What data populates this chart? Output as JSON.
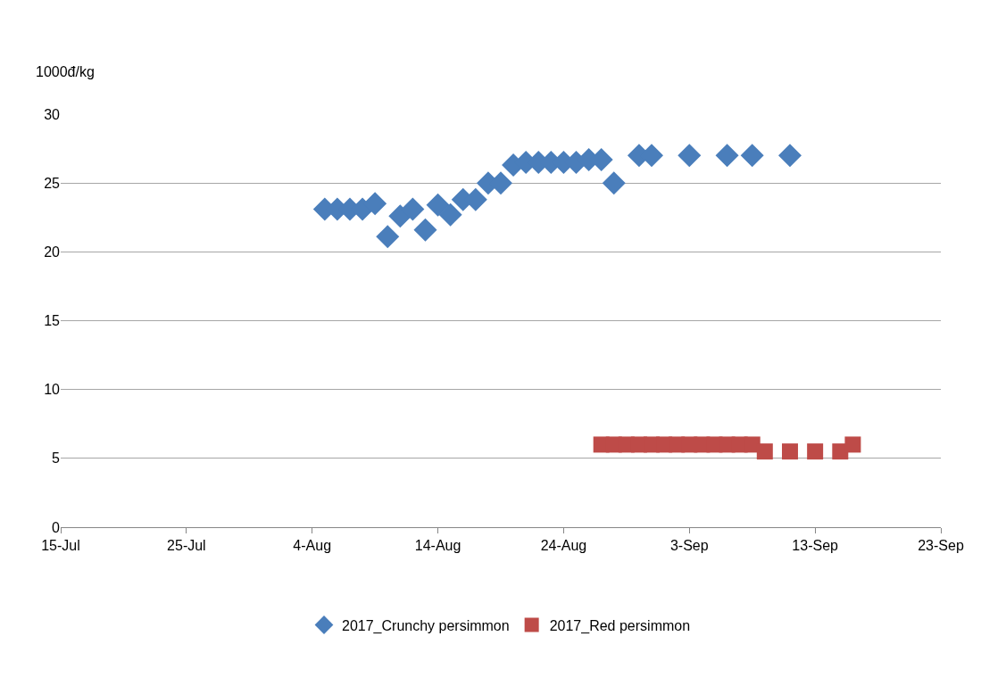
{
  "chart_data": {
    "type": "scatter",
    "ylabel": "1000đ/kg",
    "xlim": [
      "2017-07-15",
      "2017-09-23"
    ],
    "xticks": [
      {
        "value": "2017-07-15",
        "label": "15-Jul"
      },
      {
        "value": "2017-07-25",
        "label": "25-Jul"
      },
      {
        "value": "2017-08-04",
        "label": "4-Aug"
      },
      {
        "value": "2017-08-14",
        "label": "14-Aug"
      },
      {
        "value": "2017-08-24",
        "label": "24-Aug"
      },
      {
        "value": "2017-09-03",
        "label": "3-Sep"
      },
      {
        "value": "2017-09-13",
        "label": "13-Sep"
      },
      {
        "value": "2017-09-23",
        "label": "23-Sep"
      }
    ],
    "ylim": [
      0,
      30
    ],
    "yticks": [
      0,
      5,
      10,
      15,
      20,
      25,
      30
    ],
    "grid": "y",
    "legend": "bottom",
    "series": [
      {
        "name": "2017_Crunchy persimmon",
        "color": "#4a7ebb",
        "marker": "diamond",
        "x": [
          "2017-08-05",
          "2017-08-06",
          "2017-08-07",
          "2017-08-08",
          "2017-08-09",
          "2017-08-10",
          "2017-08-11",
          "2017-08-12",
          "2017-08-13",
          "2017-08-14",
          "2017-08-15",
          "2017-08-16",
          "2017-08-17",
          "2017-08-18",
          "2017-08-19",
          "2017-08-20",
          "2017-08-21",
          "2017-08-22",
          "2017-08-23",
          "2017-08-24",
          "2017-08-25",
          "2017-08-26",
          "2017-08-27",
          "2017-08-28",
          "2017-08-30",
          "2017-08-31",
          "2017-09-03",
          "2017-09-06",
          "2017-09-08",
          "2017-09-11"
        ],
        "values": [
          23.1,
          23.1,
          23.1,
          23.1,
          23.5,
          21.1,
          22.6,
          23.1,
          21.6,
          23.4,
          22.7,
          23.8,
          23.8,
          25.0,
          25.0,
          26.3,
          26.5,
          26.5,
          26.5,
          26.5,
          26.5,
          26.7,
          26.7,
          25.0,
          27.0,
          27.0,
          27.0,
          27.0,
          27.0,
          27.0
        ]
      },
      {
        "name": "2017_Red persimmon",
        "color": "#be4b48",
        "marker": "square",
        "x": [
          "2017-08-27",
          "2017-08-28",
          "2017-08-29",
          "2017-08-30",
          "2017-08-31",
          "2017-09-01",
          "2017-09-02",
          "2017-09-03",
          "2017-09-04",
          "2017-09-05",
          "2017-09-06",
          "2017-09-07",
          "2017-09-08",
          "2017-09-09",
          "2017-09-11",
          "2017-09-13",
          "2017-09-15",
          "2017-09-16"
        ],
        "values": [
          6,
          6,
          6,
          6,
          6,
          6,
          6,
          6,
          6,
          6,
          6,
          6,
          6,
          5.5,
          5.5,
          5.5,
          5.5,
          6
        ]
      }
    ]
  }
}
